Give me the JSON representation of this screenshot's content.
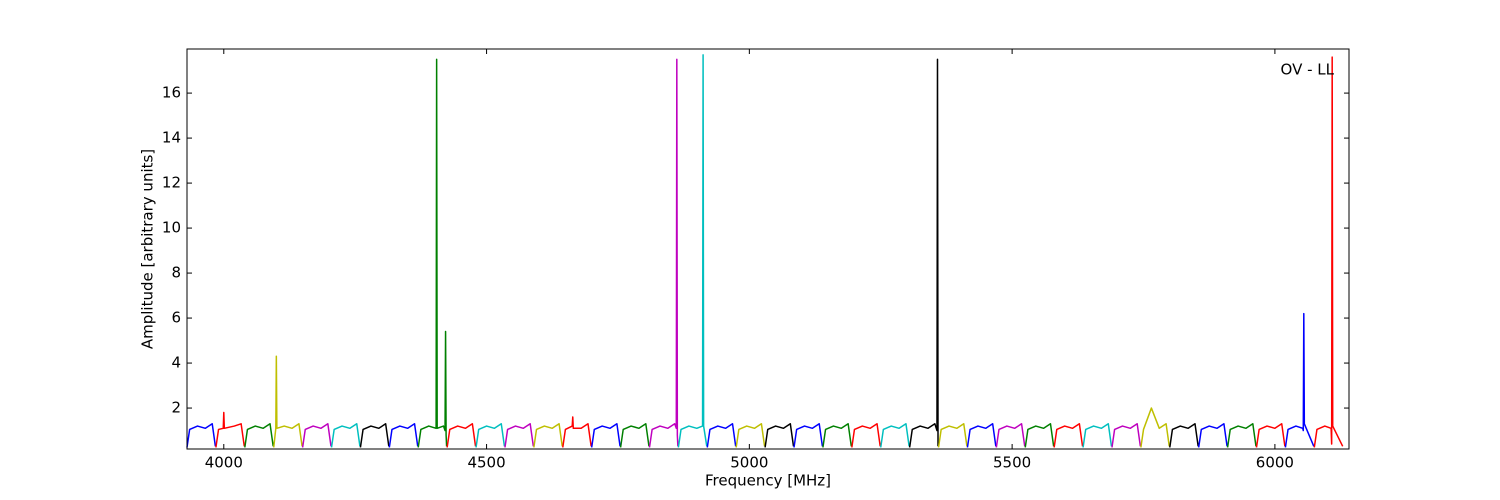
{
  "chart_data": {
    "type": "line",
    "xlabel": "Frequency [MHz]",
    "ylabel": "Amplitude [arbitrary units]",
    "annotation": "OV - LL",
    "xlim": [
      3930,
      6141
    ],
    "ylim": [
      0.18,
      17.96
    ],
    "xticks": [
      4000,
      4500,
      5000,
      5500,
      6000
    ],
    "yticks": [
      2,
      4,
      6,
      8,
      10,
      12,
      14,
      16
    ],
    "series": [
      {
        "color": "#0000ff",
        "x": [
          3930,
          3935,
          3950,
          3965,
          3978,
          3984
        ],
        "values": [
          0.25,
          1.05,
          1.2,
          1.1,
          1.3,
          0.3
        ]
      },
      {
        "color": "#ff0000",
        "x": [
          3985,
          3990,
          3999,
          4000,
          4001,
          4020,
          4033,
          4039
        ],
        "values": [
          0.25,
          1.05,
          1.1,
          1.8,
          1.1,
          1.2,
          1.3,
          0.3
        ]
      },
      {
        "color": "#008000",
        "x": [
          4040,
          4045,
          4060,
          4075,
          4088,
          4094
        ],
        "values": [
          0.25,
          1.05,
          1.2,
          1.1,
          1.3,
          0.3
        ]
      },
      {
        "color": "#bfbf00",
        "x": [
          4095,
          4099,
          4100,
          4101,
          4115,
          4130,
          4143,
          4149
        ],
        "values": [
          0.25,
          1.1,
          4.3,
          1.1,
          1.2,
          1.1,
          1.3,
          0.3
        ]
      },
      {
        "color": "#bf00bf",
        "x": [
          4150,
          4155,
          4170,
          4185,
          4198,
          4204
        ],
        "values": [
          0.25,
          1.05,
          1.2,
          1.1,
          1.3,
          0.3
        ]
      },
      {
        "color": "#00bfbf",
        "x": [
          4205,
          4210,
          4225,
          4240,
          4253,
          4259
        ],
        "values": [
          0.25,
          1.05,
          1.2,
          1.1,
          1.3,
          0.3
        ]
      },
      {
        "color": "#000000",
        "x": [
          4260,
          4265,
          4280,
          4295,
          4308,
          4314
        ],
        "values": [
          0.25,
          1.05,
          1.2,
          1.1,
          1.3,
          0.3
        ]
      },
      {
        "color": "#0000ff",
        "x": [
          4315,
          4320,
          4335,
          4350,
          4363,
          4369
        ],
        "values": [
          0.25,
          1.05,
          1.2,
          1.1,
          1.3,
          0.3
        ]
      },
      {
        "color": "#008000",
        "x": [
          4370,
          4375,
          4390,
          4404,
          4405,
          4406,
          4418,
          4421,
          4422,
          4423,
          4424
        ],
        "values": [
          0.25,
          1.05,
          1.2,
          1.1,
          17.5,
          1.1,
          1.2,
          1.0,
          5.4,
          0.8,
          0.3
        ]
      },
      {
        "color": "#ff0000",
        "x": [
          4425,
          4430,
          4445,
          4460,
          4473,
          4479
        ],
        "values": [
          0.25,
          1.05,
          1.2,
          1.1,
          1.3,
          0.3
        ]
      },
      {
        "color": "#00bfbf",
        "x": [
          4480,
          4485,
          4500,
          4515,
          4528,
          4534
        ],
        "values": [
          0.25,
          1.05,
          1.2,
          1.1,
          1.3,
          0.3
        ]
      },
      {
        "color": "#bf00bf",
        "x": [
          4535,
          4540,
          4555,
          4570,
          4583,
          4589
        ],
        "values": [
          0.25,
          1.05,
          1.2,
          1.1,
          1.3,
          0.3
        ]
      },
      {
        "color": "#bfbf00",
        "x": [
          4590,
          4595,
          4610,
          4625,
          4638,
          4644
        ],
        "values": [
          0.25,
          1.05,
          1.2,
          1.1,
          1.3,
          0.3
        ]
      },
      {
        "color": "#ff0000",
        "x": [
          4645,
          4650,
          4663,
          4664,
          4665,
          4680,
          4693,
          4699
        ],
        "values": [
          0.25,
          1.05,
          1.2,
          1.6,
          1.1,
          1.1,
          1.3,
          0.3
        ]
      },
      {
        "color": "#0000ff",
        "x": [
          4700,
          4705,
          4720,
          4735,
          4748,
          4754
        ],
        "values": [
          0.25,
          1.05,
          1.2,
          1.1,
          1.3,
          0.3
        ]
      },
      {
        "color": "#008000",
        "x": [
          4755,
          4760,
          4775,
          4790,
          4803,
          4809
        ],
        "values": [
          0.25,
          1.05,
          1.2,
          1.1,
          1.3,
          0.3
        ]
      },
      {
        "color": "#bf00bf",
        "x": [
          4810,
          4815,
          4830,
          4845,
          4858,
          4861,
          4862,
          4863,
          4864
        ],
        "values": [
          0.25,
          1.05,
          1.2,
          1.1,
          1.3,
          1.1,
          17.5,
          0.8,
          0.3
        ]
      },
      {
        "color": "#00bfbf",
        "x": [
          4865,
          4870,
          4885,
          4900,
          4911,
          4912,
          4913,
          4919
        ],
        "values": [
          0.25,
          1.05,
          1.2,
          1.1,
          1.2,
          17.7,
          1.2,
          0.3
        ]
      },
      {
        "color": "#0000ff",
        "x": [
          4920,
          4925,
          4940,
          4955,
          4968,
          4974
        ],
        "values": [
          0.25,
          1.05,
          1.2,
          1.1,
          1.3,
          0.3
        ]
      },
      {
        "color": "#bfbf00",
        "x": [
          4975,
          4980,
          4995,
          5010,
          5023,
          5029
        ],
        "values": [
          0.25,
          1.05,
          1.2,
          1.1,
          1.3,
          0.3
        ]
      },
      {
        "color": "#000000",
        "x": [
          5030,
          5035,
          5050,
          5065,
          5078,
          5084
        ],
        "values": [
          0.25,
          1.05,
          1.2,
          1.1,
          1.3,
          0.3
        ]
      },
      {
        "color": "#0000ff",
        "x": [
          5085,
          5090,
          5105,
          5120,
          5133,
          5139
        ],
        "values": [
          0.25,
          1.05,
          1.2,
          1.1,
          1.3,
          0.3
        ]
      },
      {
        "color": "#008000",
        "x": [
          5140,
          5145,
          5160,
          5175,
          5188,
          5194
        ],
        "values": [
          0.25,
          1.05,
          1.2,
          1.1,
          1.3,
          0.3
        ]
      },
      {
        "color": "#ff0000",
        "x": [
          5195,
          5200,
          5215,
          5230,
          5243,
          5249
        ],
        "values": [
          0.25,
          1.05,
          1.2,
          1.1,
          1.3,
          0.3
        ]
      },
      {
        "color": "#00bfbf",
        "x": [
          5250,
          5255,
          5270,
          5285,
          5298,
          5304
        ],
        "values": [
          0.25,
          1.05,
          1.2,
          1.1,
          1.3,
          0.3
        ]
      },
      {
        "color": "#000000",
        "x": [
          5305,
          5310,
          5325,
          5340,
          5353,
          5357,
          5358,
          5359
        ],
        "values": [
          0.25,
          1.05,
          1.2,
          1.1,
          1.3,
          1.0,
          17.5,
          0.3
        ]
      },
      {
        "color": "#bfbf00",
        "x": [
          5360,
          5365,
          5380,
          5395,
          5408,
          5414
        ],
        "values": [
          0.25,
          1.05,
          1.2,
          1.1,
          1.3,
          0.3
        ]
      },
      {
        "color": "#0000ff",
        "x": [
          5415,
          5420,
          5435,
          5450,
          5463,
          5469
        ],
        "values": [
          0.25,
          1.05,
          1.2,
          1.1,
          1.3,
          0.3
        ]
      },
      {
        "color": "#bf00bf",
        "x": [
          5470,
          5475,
          5490,
          5505,
          5518,
          5524
        ],
        "values": [
          0.25,
          1.05,
          1.2,
          1.1,
          1.3,
          0.3
        ]
      },
      {
        "color": "#008000",
        "x": [
          5525,
          5530,
          5545,
          5560,
          5573,
          5579
        ],
        "values": [
          0.25,
          1.05,
          1.2,
          1.1,
          1.3,
          0.3
        ]
      },
      {
        "color": "#ff0000",
        "x": [
          5580,
          5585,
          5600,
          5615,
          5628,
          5634
        ],
        "values": [
          0.25,
          1.05,
          1.2,
          1.1,
          1.3,
          0.3
        ]
      },
      {
        "color": "#00bfbf",
        "x": [
          5635,
          5640,
          5655,
          5670,
          5683,
          5689
        ],
        "values": [
          0.25,
          1.05,
          1.2,
          1.1,
          1.3,
          0.3
        ]
      },
      {
        "color": "#bf00bf",
        "x": [
          5690,
          5695,
          5710,
          5725,
          5738,
          5744
        ],
        "values": [
          0.25,
          1.05,
          1.2,
          1.1,
          1.3,
          0.3
        ]
      },
      {
        "color": "#bfbf00",
        "x": [
          5745,
          5750,
          5765,
          5780,
          5793,
          5799
        ],
        "values": [
          0.25,
          1.05,
          2.0,
          1.1,
          1.3,
          0.3
        ]
      },
      {
        "color": "#000000",
        "x": [
          5800,
          5805,
          5820,
          5835,
          5848,
          5854
        ],
        "values": [
          0.25,
          1.05,
          1.2,
          1.1,
          1.3,
          0.3
        ]
      },
      {
        "color": "#0000ff",
        "x": [
          5855,
          5860,
          5875,
          5890,
          5903,
          5909
        ],
        "values": [
          0.25,
          1.05,
          1.2,
          1.1,
          1.3,
          0.3
        ]
      },
      {
        "color": "#008000",
        "x": [
          5910,
          5915,
          5930,
          5945,
          5958,
          5964
        ],
        "values": [
          0.25,
          1.05,
          1.2,
          1.1,
          1.3,
          0.3
        ]
      },
      {
        "color": "#ff0000",
        "x": [
          5965,
          5970,
          5985,
          6000,
          6013,
          6019
        ],
        "values": [
          0.25,
          1.05,
          1.2,
          1.1,
          1.3,
          0.3
        ]
      },
      {
        "color": "#0000ff",
        "x": [
          6020,
          6025,
          6040,
          6053,
          6054,
          6055,
          6056,
          6074
        ],
        "values": [
          0.25,
          1.05,
          1.2,
          1.1,
          1.0,
          6.2,
          1.3,
          0.3
        ]
      },
      {
        "color": "#ff0000",
        "x": [
          6075,
          6080,
          6095,
          6107,
          6108,
          6109,
          6110,
          6129
        ],
        "values": [
          0.25,
          1.05,
          1.2,
          1.1,
          0.4,
          17.6,
          1.2,
          0.3
        ]
      }
    ]
  }
}
